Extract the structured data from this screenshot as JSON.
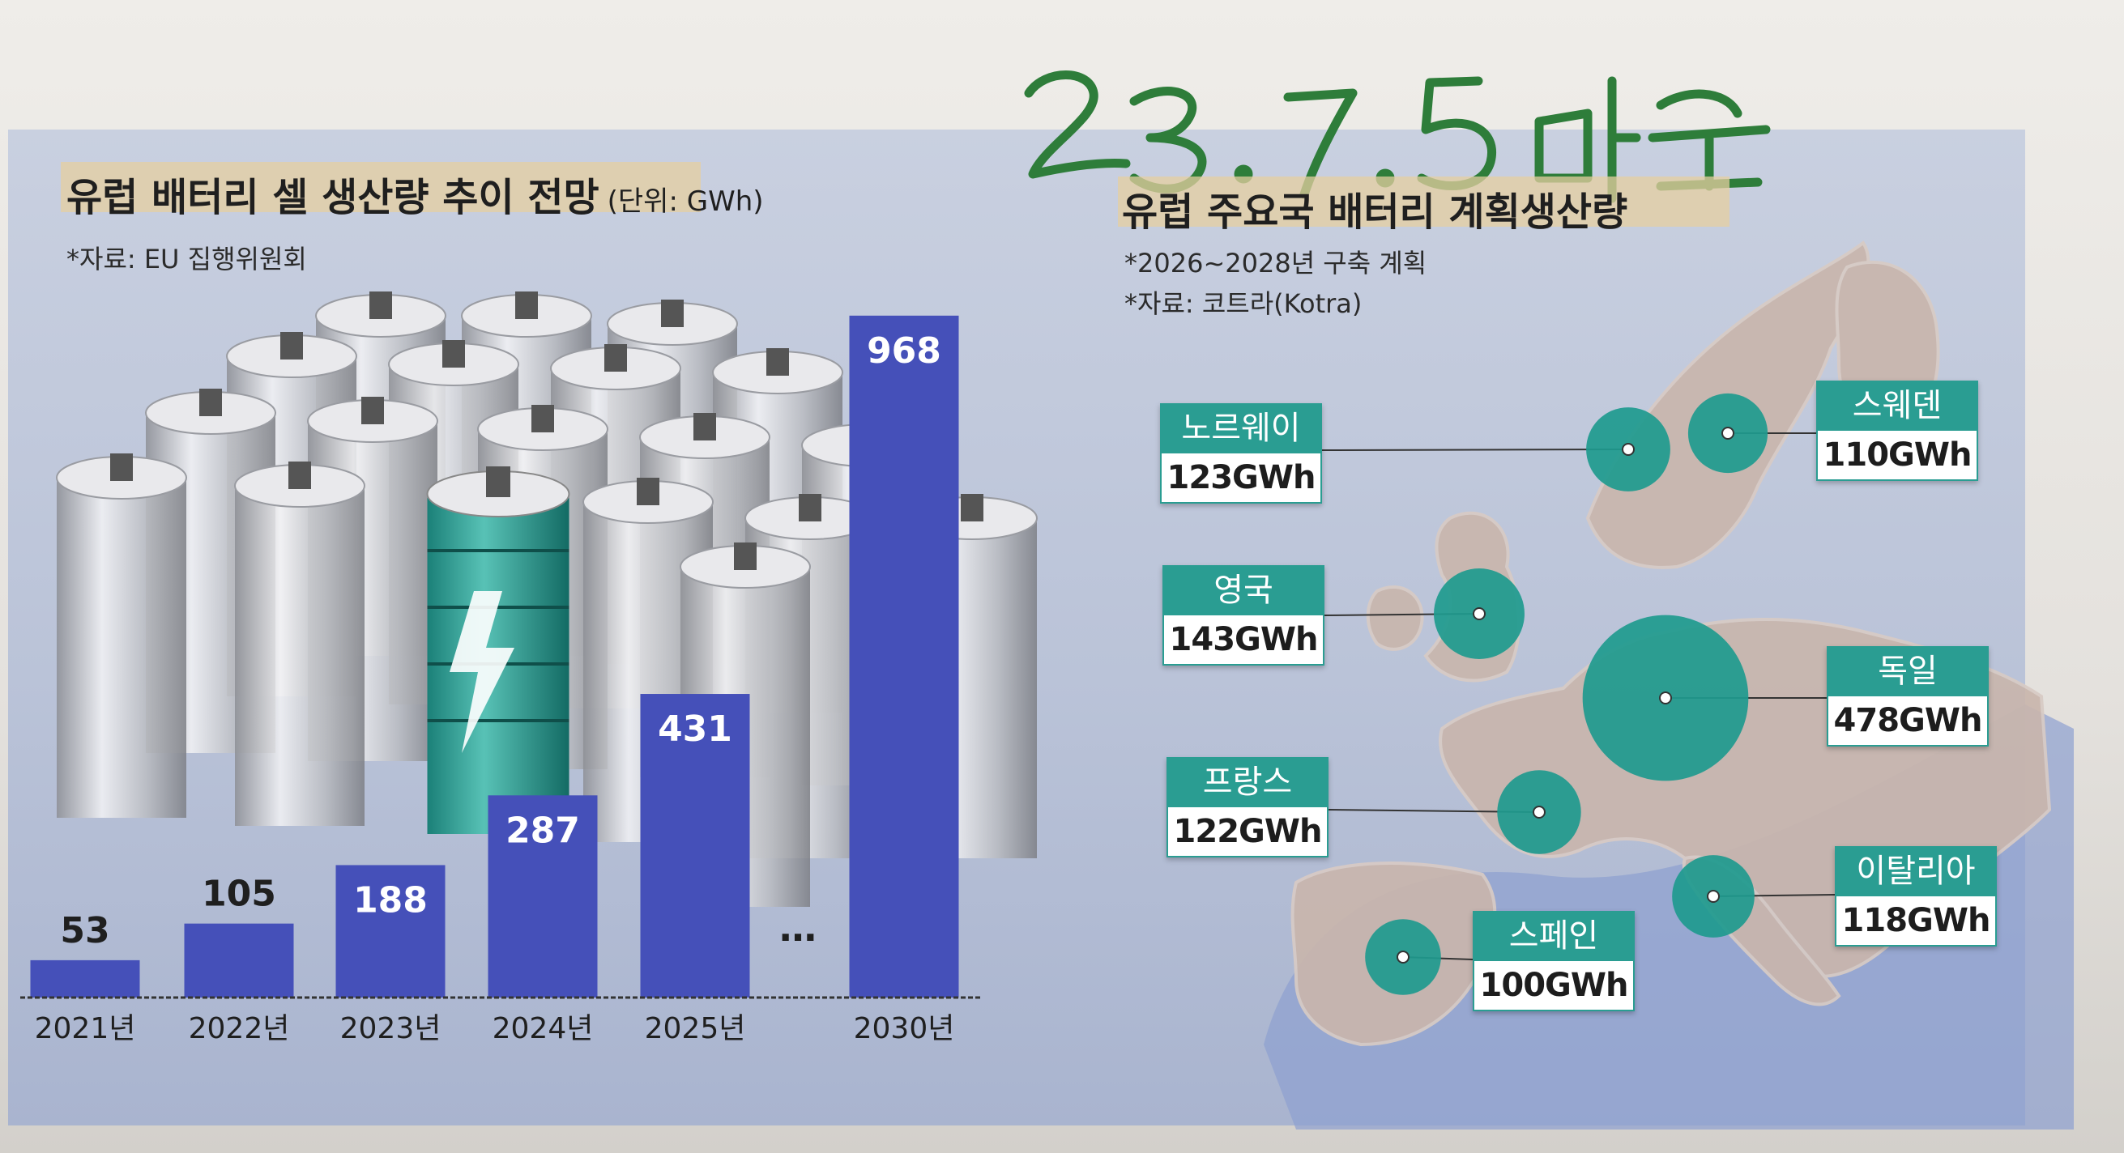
{
  "handwriting": "23.7.5 머루",
  "left_chart": {
    "title": "유럽 배터리 셀 생산량 추이 전망",
    "unit": "(단위: GWh)",
    "source": "*자료: EU 집행위원회",
    "ellipsis": "…",
    "colors": {
      "bar": "#4550b9",
      "label_on_bar": "#ffffff",
      "label_above": "#1f1f1f"
    }
  },
  "chart_data": [
    {
      "type": "bar",
      "title": "유럽 배터리 셀 생산량 추이 전망",
      "ylabel": "(단위: GWh)",
      "categories": [
        "2021년",
        "2022년",
        "2023년",
        "2024년",
        "2025년",
        "2030년"
      ],
      "values": [
        53,
        105,
        188,
        287,
        431,
        968
      ],
      "ylim": [
        0,
        1000
      ],
      "grid": false
    },
    {
      "type": "bubble-map",
      "title": "유럽 주요국 배터리 계획생산량",
      "notes": [
        "*2026~2028년 구축 계획",
        "*자료: 코트라(Kotra)"
      ],
      "points": [
        {
          "country": "노르웨이",
          "value": 123,
          "label": "123GWh"
        },
        {
          "country": "스웨덴",
          "value": 110,
          "label": "110GWh"
        },
        {
          "country": "영국",
          "value": 143,
          "label": "143GWh"
        },
        {
          "country": "독일",
          "value": 478,
          "label": "478GWh"
        },
        {
          "country": "프랑스",
          "value": 122,
          "label": "122GWh"
        },
        {
          "country": "이탈리아",
          "value": 118,
          "label": "118GWh"
        },
        {
          "country": "스페인",
          "value": 100,
          "label": "100GWh"
        }
      ],
      "colors": {
        "bubble": "#1e9a8e",
        "label_header": "#2a9d92",
        "land": "#c9b6ad",
        "sea": "#8d9fd0"
      }
    }
  ],
  "right_map": {
    "title": "유럽 주요국 배터리 계획생산량",
    "note1": "*2026~2028년 구축 계획",
    "note2": "*자료: 코트라(Kotra)"
  }
}
